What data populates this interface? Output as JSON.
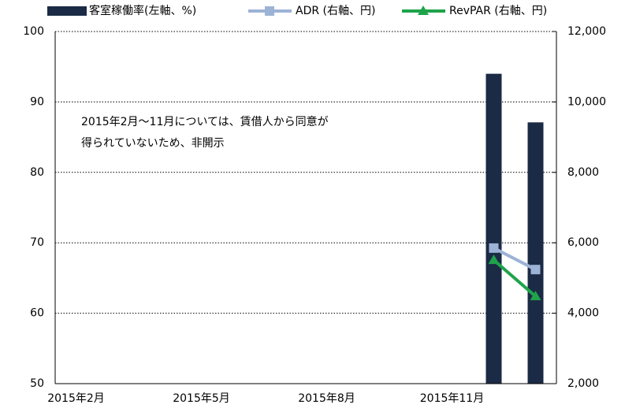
{
  "chart_data": {
    "type": "bar-line",
    "categories": [
      "2015年2月",
      null,
      null,
      "2015年5月",
      null,
      null,
      "2015年8月",
      null,
      null,
      "2015年11月",
      null,
      null
    ],
    "series": [
      {
        "name": "客室稼働率(左軸、%)",
        "type": "bar",
        "color": "#1b2a45",
        "values": [
          null,
          null,
          null,
          null,
          null,
          null,
          null,
          null,
          null,
          null,
          94.0,
          87.1
        ]
      },
      {
        "name": "ADR (右軸、円)",
        "type": "line",
        "marker": "square",
        "axis": "y2",
        "color": "#9db3d6",
        "values": [
          null,
          null,
          null,
          null,
          null,
          null,
          null,
          null,
          null,
          null,
          5850,
          5240
        ]
      },
      {
        "name": "RevPAR (右軸、円)",
        "type": "line",
        "marker": "triangle",
        "axis": "y2",
        "color": "#1fa34a",
        "values": [
          null,
          null,
          null,
          null,
          null,
          null,
          null,
          null,
          null,
          null,
          5510,
          4480
        ]
      }
    ],
    "ylim": [
      50,
      100
    ],
    "yticks": [
      50,
      60,
      70,
      80,
      90,
      100
    ],
    "y2lim": [
      2000,
      12000
    ],
    "y2ticks": [
      {
        "value": 2000,
        "label": "2,000"
      },
      {
        "value": 4000,
        "label": "4,000"
      },
      {
        "value": 6000,
        "label": "6,000"
      },
      {
        "value": 8000,
        "label": "8,000"
      },
      {
        "value": 10000,
        "label": "10,000"
      },
      {
        "value": 12000,
        "label": "12,000"
      }
    ],
    "annotations": [
      "2015年2月～11月については、賃借人から同意が",
      "得られていないため、非開示"
    ],
    "grid": true,
    "legend": "top"
  }
}
